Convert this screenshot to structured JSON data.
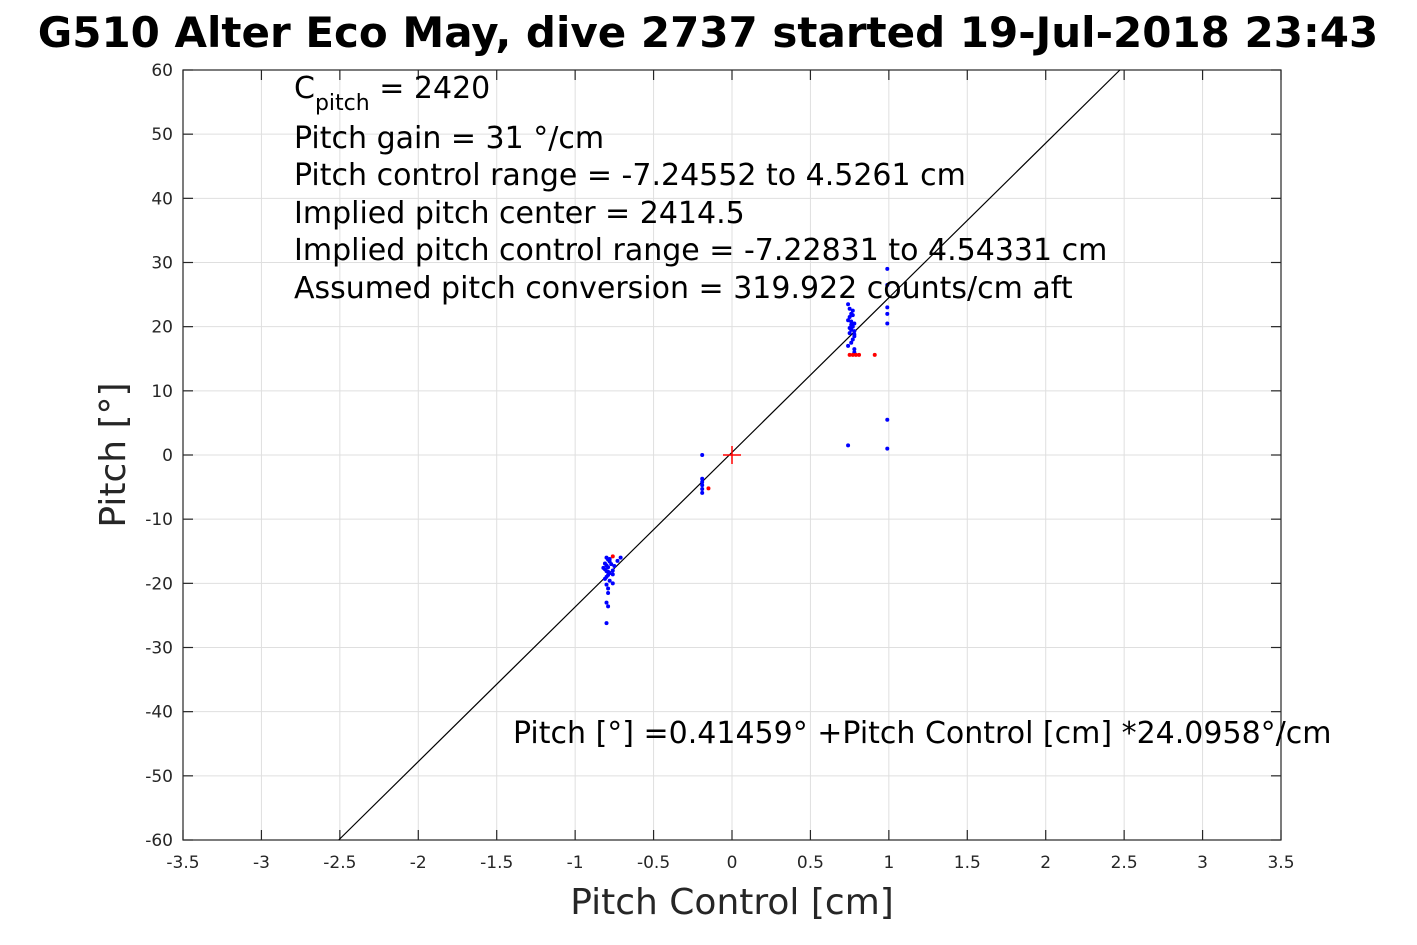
{
  "chart_data": {
    "type": "scatter",
    "title": "G510 Alter Eco May, dive 2737 started 19-Jul-2018 23:43",
    "xlabel": "Pitch Control [cm]",
    "ylabel": "Pitch [°]",
    "xlim": [
      -3.5,
      3.5
    ],
    "ylim": [
      -60,
      60
    ],
    "xticks": [
      -3.5,
      -3,
      -2.5,
      -2,
      -1.5,
      -1,
      -0.5,
      0,
      0.5,
      1,
      1.5,
      2,
      2.5,
      3,
      3.5
    ],
    "xtick_labels": [
      "-3.5",
      "-3",
      "-2.5",
      "-2",
      "-1.5",
      "-1",
      "-0.5",
      "0",
      "0.5",
      "1",
      "1.5",
      "2",
      "2.5",
      "3",
      "3.5"
    ],
    "yticks": [
      60,
      50,
      40,
      30,
      20,
      10,
      0,
      -10,
      -20,
      -30,
      -40,
      -50,
      -60
    ],
    "ytick_labels": [
      "60",
      "50",
      "40",
      "30",
      "20",
      "10",
      "0",
      "-10",
      "-20",
      "-30",
      "-40",
      "-50",
      "-60"
    ],
    "grid": true,
    "annotations": {
      "c_pitch_main": "C",
      "c_pitch_sub": "pitch",
      "c_pitch_value": " = 2420",
      "lines": [
        "Pitch gain = 31 °/cm",
        "Pitch control range = -7.24552 to 4.5261 cm",
        "Implied pitch center = 2414.5",
        "Implied pitch control range = -7.22831 to 4.54331 cm",
        "Assumed pitch conversion = 319.922 counts/cm aft"
      ],
      "equation": "Pitch [°] =0.41459° +Pitch Control [cm] *24.0958°/cm"
    },
    "fit_line": {
      "intercept": 0.41459,
      "slope": 24.0958,
      "color": "#000000"
    },
    "center_marker": {
      "x": 0,
      "y": 0,
      "color": "#ff0000"
    },
    "series": [
      {
        "color": "#0000ff",
        "points": [
          [
            -0.8,
            -16.0
          ],
          [
            -0.79,
            -16.3
          ],
          [
            -0.78,
            -16.6
          ],
          [
            -0.81,
            -16.9
          ],
          [
            -0.8,
            -17.2
          ],
          [
            -0.79,
            -17.5
          ],
          [
            -0.81,
            -17.8
          ],
          [
            -0.8,
            -18.1
          ],
          [
            -0.78,
            -18.4
          ],
          [
            -0.79,
            -18.7
          ],
          [
            -0.8,
            -19.0
          ],
          [
            -0.81,
            -19.3
          ],
          [
            -0.78,
            -19.6
          ],
          [
            -0.79,
            -18.2
          ],
          [
            -0.77,
            -17.0
          ],
          [
            -0.76,
            -18.0
          ],
          [
            -0.75,
            -17.3
          ],
          [
            -0.78,
            -16.2
          ],
          [
            -0.82,
            -17.6
          ],
          [
            -0.8,
            -20.2
          ],
          [
            -0.79,
            -20.8
          ],
          [
            -0.79,
            -21.5
          ],
          [
            -0.8,
            -23.0
          ],
          [
            -0.79,
            -23.6
          ],
          [
            -0.8,
            -26.2
          ],
          [
            -0.76,
            -20.0
          ],
          [
            -0.76,
            -18.6
          ],
          [
            -0.71,
            -16.0
          ],
          [
            -0.73,
            -16.5
          ],
          [
            -0.19,
            0.0
          ],
          [
            -0.19,
            -3.7
          ],
          [
            -0.19,
            -4.2
          ],
          [
            -0.19,
            -4.7
          ],
          [
            -0.19,
            -5.3
          ],
          [
            -0.19,
            -5.9
          ],
          [
            0.74,
            17.0
          ],
          [
            0.76,
            17.5
          ],
          [
            0.77,
            18.0
          ],
          [
            0.78,
            18.5
          ],
          [
            0.75,
            19.0
          ],
          [
            0.76,
            19.5
          ],
          [
            0.77,
            20.0
          ],
          [
            0.78,
            20.5
          ],
          [
            0.74,
            21.0
          ],
          [
            0.75,
            21.5
          ],
          [
            0.76,
            22.0
          ],
          [
            0.77,
            22.5
          ],
          [
            0.78,
            18.8
          ],
          [
            0.76,
            20.8
          ],
          [
            0.75,
            19.8
          ],
          [
            0.77,
            21.8
          ],
          [
            0.78,
            19.3
          ],
          [
            0.74,
            23.5
          ],
          [
            0.75,
            22.8
          ],
          [
            0.76,
            20.3
          ],
          [
            0.78,
            16.5
          ],
          [
            0.78,
            16.0
          ],
          [
            0.74,
            1.5
          ],
          [
            0.99,
            29.0
          ],
          [
            0.99,
            26.5
          ],
          [
            0.99,
            23.0
          ],
          [
            0.99,
            22.0
          ],
          [
            0.99,
            20.5
          ],
          [
            0.99,
            5.5
          ],
          [
            0.99,
            1.0
          ]
        ]
      },
      {
        "color": "#ff0000",
        "points": [
          [
            -0.76,
            -15.8
          ],
          [
            -0.15,
            -5.2
          ],
          [
            0.75,
            15.6
          ],
          [
            0.77,
            15.6
          ],
          [
            0.79,
            15.6
          ],
          [
            0.81,
            15.6
          ],
          [
            0.91,
            15.6
          ]
        ]
      }
    ]
  }
}
